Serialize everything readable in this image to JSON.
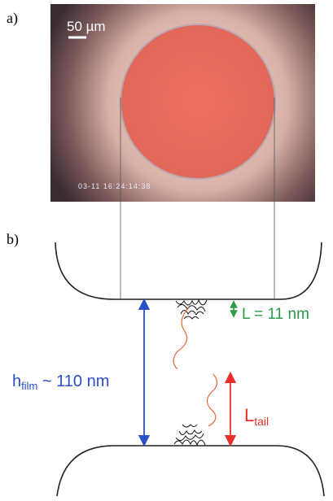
{
  "panel_a": {
    "label": "a)",
    "scale_bar": "50 µm",
    "timestamp": "03-11 16:24:14:38"
  },
  "panel_b": {
    "label": "b)",
    "l_label": "L = 11 nm",
    "h_label": {
      "main": "h",
      "sub": "film",
      "rest": " ~ 110 nm"
    },
    "ltail_label": {
      "main": "L",
      "sub": "tail"
    }
  }
}
